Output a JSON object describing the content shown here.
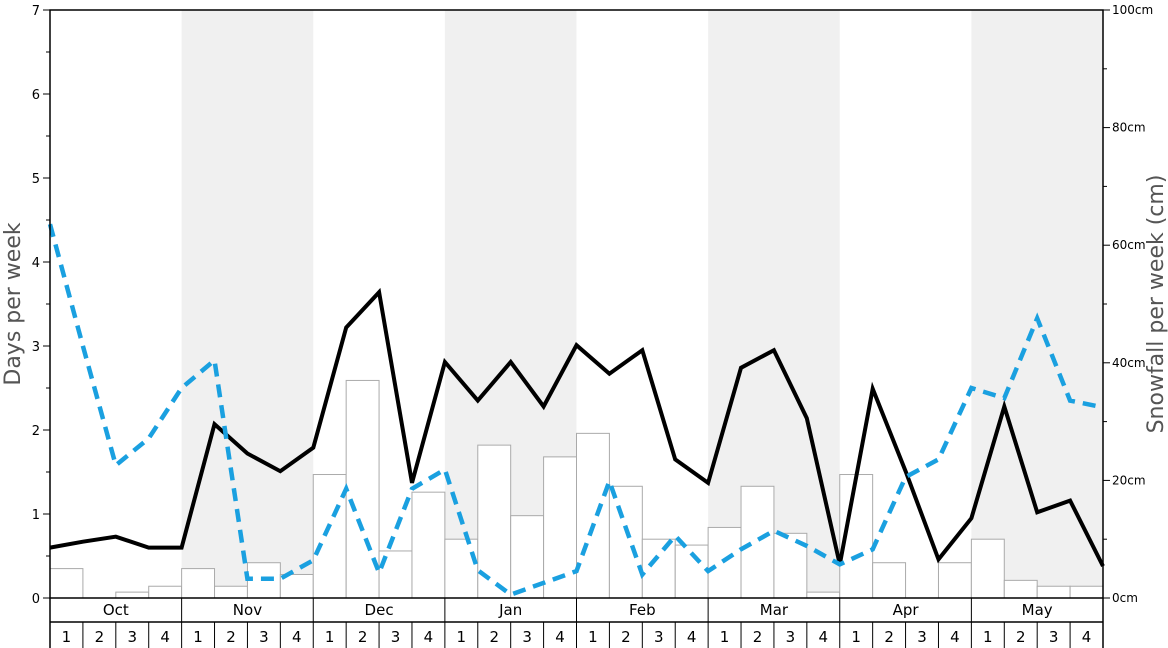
{
  "chart_data": {
    "type": "bar",
    "y_left_label": "Days per week",
    "y_right_label": "Snowfall per week (cm)",
    "y_left_range": [
      0,
      7
    ],
    "y_left_ticks": [
      "0",
      "1",
      "2",
      "3",
      "4",
      "5",
      "6",
      "7"
    ],
    "y_right_range": [
      0,
      100
    ],
    "y_right_ticks": [
      "0cm",
      "20cm",
      "40cm",
      "60cm",
      "80cm",
      "100cm"
    ],
    "months": [
      "Oct",
      "Nov",
      "Dec",
      "Jan",
      "Feb",
      "Mar",
      "Apr",
      "May"
    ],
    "weeks": [
      "1",
      "2",
      "3",
      "4"
    ],
    "shaded_months": [
      "Nov",
      "Jan",
      "Mar",
      "May"
    ],
    "colors": {
      "shade": "#f0f0f0",
      "bar_fill": "#ffffff",
      "bar_stroke": "#aaaaaa",
      "solid_line": "#000000",
      "dashed_line": "#1aa0e0"
    },
    "series": [
      {
        "kind": "bar",
        "axis": "right",
        "values": [
          5,
          0,
          1,
          2,
          5,
          2,
          6,
          4,
          21,
          37,
          8,
          18,
          10,
          26,
          14,
          24,
          28,
          19,
          10,
          9,
          12,
          19,
          11,
          1,
          21,
          6,
          0,
          6,
          10,
          3,
          2,
          2
        ]
      },
      {
        "kind": "line",
        "style": "solid",
        "axis": "left",
        "values": [
          0.6,
          0.67,
          0.73,
          0.6,
          0.6,
          2.07,
          1.72,
          1.51,
          1.79,
          3.22,
          3.64,
          1.37,
          2.81,
          2.35,
          2.81,
          2.28,
          3.01,
          2.67,
          2.95,
          1.65,
          1.37,
          2.74,
          2.95,
          2.14,
          0.4,
          2.49,
          1.51,
          0.46,
          0.95,
          2.28,
          1.02,
          1.16,
          0.38
        ]
      },
      {
        "kind": "line",
        "style": "dashed",
        "axis": "left",
        "values": [
          4.45,
          3.0,
          1.58,
          1.9,
          2.5,
          2.83,
          0.23,
          0.23,
          0.45,
          1.3,
          0.3,
          1.3,
          1.53,
          0.33,
          0.04,
          0.18,
          0.32,
          1.39,
          0.28,
          0.74,
          0.32,
          0.58,
          0.8,
          0.62,
          0.4,
          0.58,
          1.44,
          1.65,
          2.5,
          2.38,
          3.33,
          2.35,
          2.27
        ]
      }
    ]
  }
}
